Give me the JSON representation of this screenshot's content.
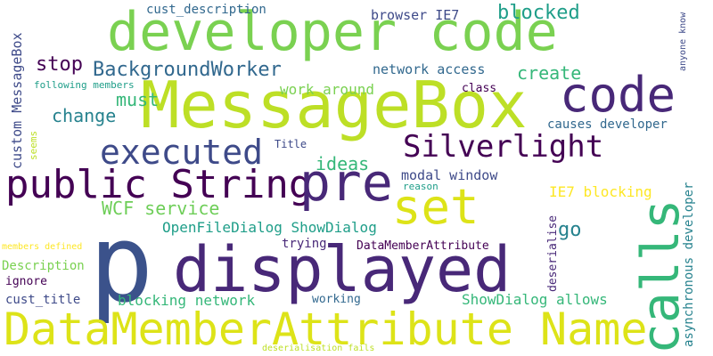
{
  "words": {
    "developer_code": "developer code",
    "messagebox": "MessageBox",
    "code": "code",
    "silverlight": "Silverlight",
    "executed": "executed",
    "public_string": "public String",
    "pre": "pre",
    "set": "set",
    "p": "p",
    "displayed": "displayed",
    "datamemberattribute_name": "DataMemberAttribute Name",
    "backgroundworker": "BackgroundWorker",
    "stop": "stop",
    "must": "must",
    "change": "change",
    "ideas": "ideas",
    "wcf_service": "WCF service",
    "openfiledialog_showdialog": "OpenFileDialog ShowDialog",
    "blocked": "blocked",
    "browser_ie7": "browser IE7",
    "cust_description": "cust_description",
    "network_access": "network access",
    "create": "create",
    "work_around": "work around",
    "class": "class",
    "causes_developer": "causes developer",
    "title": "Title",
    "modal_window": "modal window",
    "reason": "reason",
    "ie7_blocking": "IE7 blocking",
    "go": "go",
    "trying": "trying",
    "datamemberattribute": "DataMemberAttribute",
    "members_defined": "members defined",
    "description": "Description",
    "ignore": "ignore",
    "cust_title": "cust_title",
    "blocking_network": "blocking network",
    "working": "working",
    "showdialog_allows": "ShowDialog allows",
    "following_members": "following members",
    "deserialisation_fails": "deserialisation fails",
    "custom_messagebox": "custom MessageBox",
    "seems": "seems",
    "calls": "calls",
    "asynchronous_developer": "asynchronous developer",
    "anyone_know": "anyone know",
    "deserialise": "deserialise"
  }
}
